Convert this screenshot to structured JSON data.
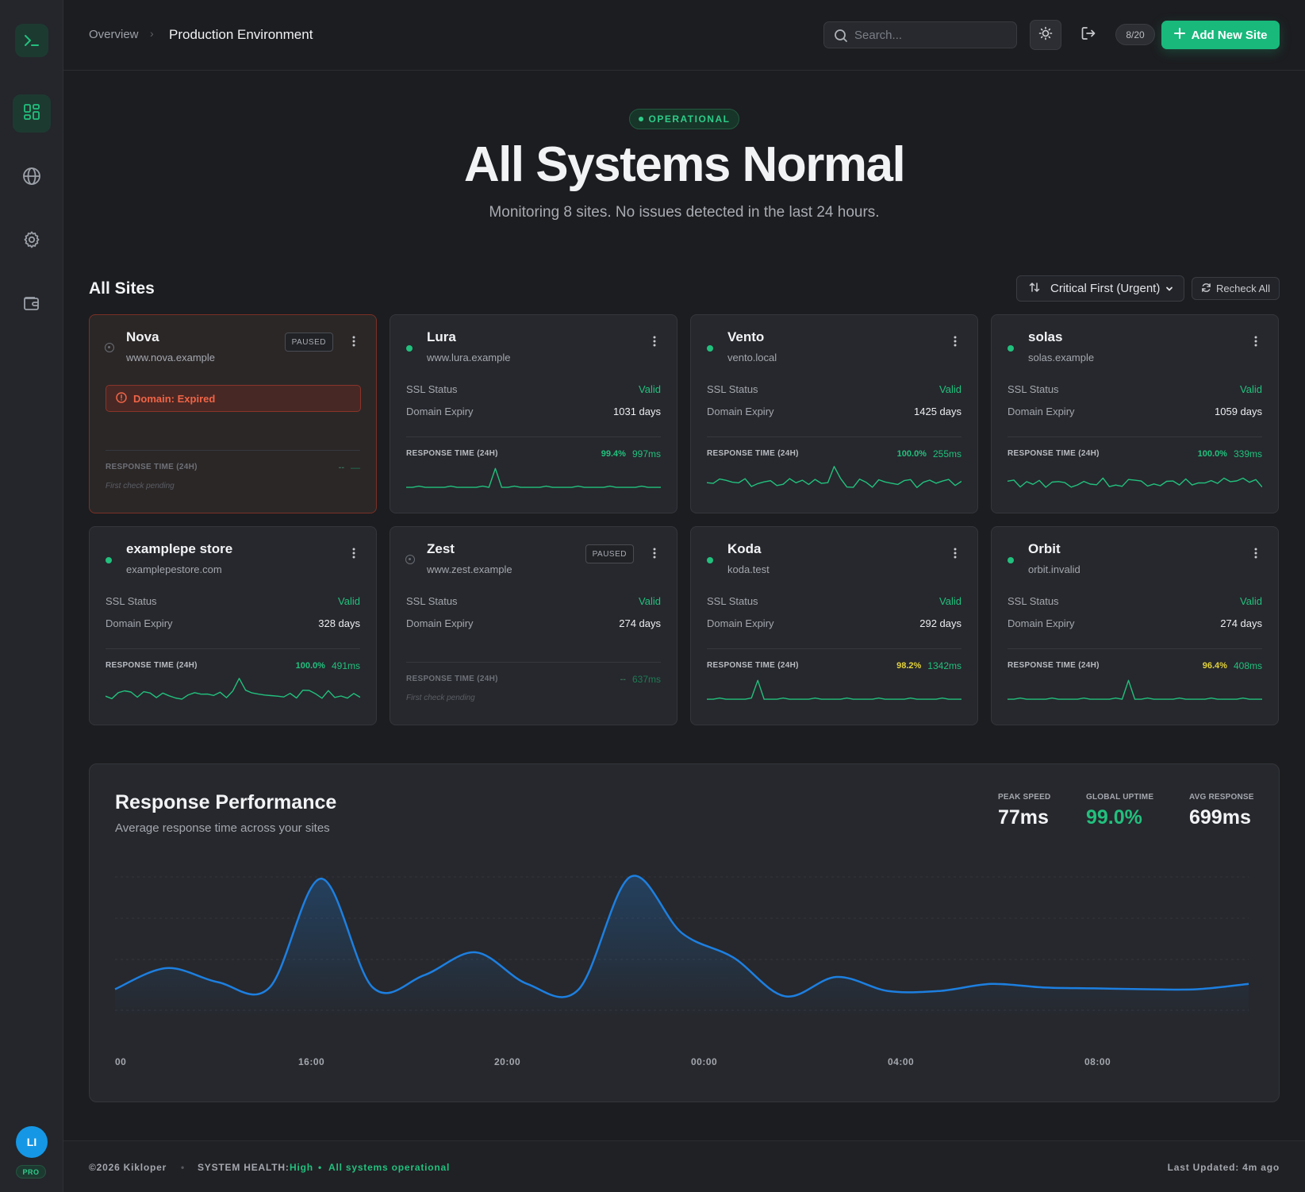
{
  "header": {
    "breadcrumb_overview": "Overview",
    "breadcrumb_sep": "›",
    "breadcrumb_current": "Production Environment",
    "search_placeholder": "Search...",
    "quota": "8/20",
    "add_site_label": "Add New Site"
  },
  "sidebar": {
    "items": [
      {
        "name": "dashboard",
        "icon": "grid-icon",
        "active": true
      },
      {
        "name": "sites",
        "icon": "globe-icon",
        "active": false
      },
      {
        "name": "settings",
        "icon": "gear-icon",
        "active": false
      },
      {
        "name": "billing",
        "icon": "wallet-icon",
        "active": false
      }
    ],
    "avatar_initials": "LI",
    "plan_badge": "PRO"
  },
  "hero": {
    "badge": "OPERATIONAL",
    "title": "All Systems Normal",
    "subtitle": "Monitoring 8 sites. No issues detected in the last 24 hours."
  },
  "sites_section": {
    "title": "All Sites",
    "sort_label": "Critical First (Urgent)",
    "recheck_label": "Recheck All",
    "labels": {
      "ssl": "SSL Status",
      "domain": "Domain Expiry",
      "response": "RESPONSE TIME (24H)",
      "pending": "First check pending"
    }
  },
  "sites": [
    {
      "name": "Nova",
      "url": "www.nova.example",
      "paused": true,
      "alert": "Domain: Expired",
      "uptime": "--",
      "ms": "—",
      "pending": true
    },
    {
      "name": "Lura",
      "url": "www.lura.example",
      "paused": false,
      "ssl": "Valid",
      "domain": "1031 days",
      "uptime": "99.4%",
      "ms": "997ms"
    },
    {
      "name": "Vento",
      "url": "vento.local",
      "paused": false,
      "ssl": "Valid",
      "domain": "1425 days",
      "uptime": "100.0%",
      "ms": "255ms"
    },
    {
      "name": "solas",
      "url": "solas.example",
      "paused": false,
      "ssl": "Valid",
      "domain": "1059 days",
      "uptime": "100.0%",
      "ms": "339ms"
    },
    {
      "name": "examplepe store",
      "url": "examplepestore.com",
      "paused": false,
      "ssl": "Valid",
      "domain": "328 days",
      "uptime": "100.0%",
      "ms": "491ms"
    },
    {
      "name": "Zest",
      "url": "www.zest.example",
      "paused": true,
      "ssl": "Valid",
      "domain": "274 days",
      "uptime": "--",
      "ms": "637ms",
      "pending": true
    },
    {
      "name": "Koda",
      "url": "koda.test",
      "paused": false,
      "ssl": "Valid",
      "domain": "292 days",
      "uptime": "98.2%",
      "ms": "1342ms"
    },
    {
      "name": "Orbit",
      "url": "orbit.invalid",
      "paused": false,
      "ssl": "Valid",
      "domain": "274 days",
      "uptime": "96.4%",
      "ms": "408ms"
    }
  ],
  "paused_badge": "PAUSED",
  "performance": {
    "title": "Response Performance",
    "subtitle": "Average response time across your sites",
    "stats": [
      {
        "label": "PEAK SPEED",
        "value": "77ms"
      },
      {
        "label": "GLOBAL UPTIME",
        "value": "99.0%"
      },
      {
        "label": "AVG RESPONSE",
        "value": "699ms"
      }
    ]
  },
  "chart_data": {
    "type": "area",
    "title": "Response Performance",
    "x_tick_labels": [
      "00",
      "16:00",
      "20:00",
      "00:00",
      "04:00",
      "08:00"
    ],
    "series": [
      {
        "values": [
          620,
          740,
          660,
          630,
          1250,
          630,
          700,
          830,
          650,
          620,
          1260,
          940,
          800,
          580,
          690,
          610,
          610,
          650,
          630,
          625,
          620,
          620,
          650
        ]
      }
    ]
  },
  "footer": {
    "copyright": "©2026 Kikloper",
    "bullet": "•",
    "health_label": "SYSTEM HEALTH:",
    "health_value": "High",
    "health_status": "All systems operational",
    "last_updated": "Last Updated: 4m ago"
  },
  "colors": {
    "accent": "#19b97c",
    "green": "#22c07d",
    "yellow": "#e3d23a",
    "danger": "#f06447",
    "chart_line": "#1d7fe0"
  }
}
